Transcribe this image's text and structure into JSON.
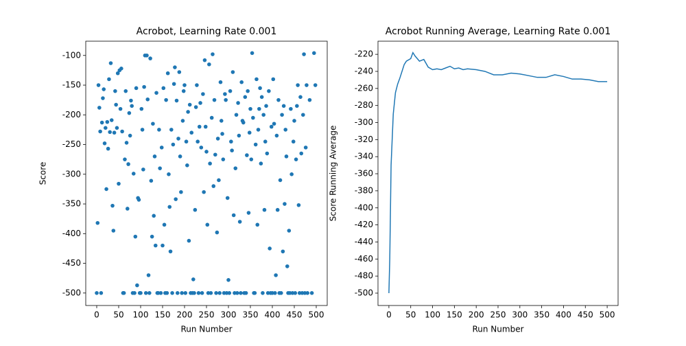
{
  "chart_data": [
    {
      "type": "scatter",
      "title": "Acrobot, Learning Rate 0.001",
      "x_label": "Run Number",
      "y_label": "Score",
      "color": "#1f77b4",
      "x": [
        0,
        2,
        4,
        6,
        8,
        10,
        12,
        14,
        16,
        18,
        20,
        22,
        24,
        26,
        28,
        30,
        32,
        34,
        36,
        38,
        40,
        42,
        44,
        46,
        48,
        50,
        52,
        54,
        56,
        58,
        60,
        62,
        64,
        66,
        68,
        70,
        72,
        74,
        76,
        78,
        80,
        82,
        84,
        86,
        88,
        90,
        92,
        94,
        96,
        98,
        100,
        102,
        104,
        106,
        108,
        110,
        112,
        114,
        116,
        118,
        120,
        122,
        124,
        126,
        128,
        130,
        132,
        134,
        136,
        138,
        140,
        142,
        144,
        146,
        148,
        150,
        152,
        154,
        156,
        158,
        160,
        162,
        164,
        166,
        168,
        170,
        172,
        174,
        176,
        178,
        180,
        182,
        184,
        186,
        188,
        190,
        192,
        194,
        196,
        198,
        200,
        202,
        204,
        206,
        208,
        210,
        212,
        214,
        216,
        218,
        220,
        222,
        224,
        226,
        228,
        230,
        232,
        234,
        236,
        238,
        240,
        242,
        244,
        246,
        248,
        250,
        252,
        254,
        256,
        258,
        260,
        262,
        264,
        266,
        268,
        270,
        272,
        274,
        276,
        278,
        280,
        282,
        284,
        286,
        288,
        290,
        292,
        294,
        296,
        298,
        300,
        302,
        304,
        306,
        308,
        310,
        312,
        314,
        316,
        318,
        320,
        322,
        324,
        326,
        328,
        330,
        332,
        334,
        336,
        338,
        340,
        342,
        344,
        346,
        348,
        350,
        352,
        354,
        356,
        358,
        360,
        362,
        364,
        366,
        368,
        370,
        372,
        374,
        376,
        378,
        380,
        382,
        384,
        386,
        388,
        390,
        392,
        394,
        396,
        398,
        400,
        402,
        404,
        406,
        408,
        410,
        412,
        414,
        416,
        418,
        420,
        422,
        424,
        426,
        428,
        430,
        432,
        434,
        436,
        438,
        440,
        442,
        444,
        446,
        448,
        450,
        452,
        454,
        456,
        458,
        460,
        462,
        464,
        466,
        468,
        470,
        472,
        474,
        476,
        478,
        480,
        485,
        490,
        495,
        498
      ],
      "values": [
        -500,
        -382,
        -150,
        -188,
        -228,
        -500,
        -213,
        -172,
        -157,
        -248,
        -222,
        -325,
        -212,
        -257,
        -140,
        -229,
        -113,
        -209,
        -353,
        -395,
        -230,
        -160,
        -183,
        -222,
        -130,
        -316,
        -125,
        -190,
        -122,
        -228,
        -500,
        -500,
        -275,
        -160,
        -247,
        -358,
        -283,
        -197,
        -235,
        -176,
        -185,
        -500,
        -299,
        -500,
        -405,
        -155,
        -487,
        -340,
        -343,
        -500,
        -500,
        -190,
        -225,
        -292,
        -153,
        -100,
        -500,
        -100,
        -174,
        -470,
        -500,
        -105,
        -311,
        -405,
        -215,
        -370,
        -270,
        -420,
        -163,
        -500,
        -500,
        -225,
        -290,
        -500,
        -255,
        -420,
        -155,
        -385,
        -500,
        -175,
        -500,
        -130,
        -300,
        -355,
        -430,
        -225,
        -500,
        -250,
        -148,
        -120,
        -342,
        -176,
        -500,
        -240,
        -128,
        -270,
        -330,
        -500,
        -210,
        -160,
        -150,
        -500,
        -245,
        -285,
        -195,
        -412,
        -183,
        -500,
        -230,
        -500,
        -477,
        -500,
        -360,
        -187,
        -150,
        -245,
        -500,
        -220,
        -180,
        -255,
        -500,
        -165,
        -330,
        -108,
        -220,
        -262,
        -385,
        -500,
        -115,
        -282,
        -500,
        -205,
        -98,
        -320,
        -175,
        -267,
        -500,
        -398,
        -240,
        -310,
        -500,
        -145,
        -210,
        -232,
        -275,
        -500,
        -165,
        -175,
        -500,
        -340,
        -478,
        -500,
        -160,
        -245,
        -260,
        -128,
        -369,
        -500,
        -290,
        -200,
        -500,
        -180,
        -235,
        -380,
        -500,
        -145,
        -210,
        -213,
        -500,
        -170,
        -500,
        -268,
        -160,
        -365,
        -230,
        -190,
        -275,
        -96,
        -205,
        -500,
        -500,
        -250,
        -140,
        -385,
        -225,
        -190,
        -155,
        -282,
        -170,
        -500,
        -200,
        -360,
        -245,
        -185,
        -265,
        -500,
        -160,
        -425,
        -500,
        -220,
        -500,
        -140,
        -215,
        -500,
        -470,
        -235,
        -360,
        -175,
        -500,
        -310,
        -500,
        -200,
        -430,
        -185,
        -350,
        -225,
        -270,
        -455,
        -500,
        -395,
        -500,
        -190,
        -300,
        -500,
        -245,
        -210,
        -500,
        -275,
        -185,
        -150,
        -352,
        -500,
        -170,
        -265,
        -500,
        -200,
        -98,
        -500,
        -255,
        -150,
        -500,
        -175,
        -500,
        -96,
        -150
      ],
      "xlim": [
        -25,
        525
      ],
      "xticks": [
        0,
        50,
        100,
        150,
        200,
        250,
        300,
        350,
        400,
        450,
        500
      ],
      "ylim": [
        -521,
        -76
      ],
      "yticks": [
        -500,
        -450,
        -400,
        -350,
        -300,
        -250,
        -200,
        -150,
        -100
      ]
    },
    {
      "type": "line",
      "title": "Acrobot Running Average, Learning Rate 0.001",
      "x_label": "Run Number",
      "y_label": "Score Running Average",
      "color": "#1f77b4",
      "x": [
        0,
        2,
        5,
        10,
        15,
        20,
        25,
        30,
        35,
        40,
        50,
        55,
        60,
        70,
        80,
        90,
        100,
        110,
        120,
        130,
        140,
        150,
        160,
        170,
        180,
        200,
        220,
        240,
        260,
        280,
        300,
        320,
        340,
        360,
        380,
        400,
        420,
        440,
        460,
        480,
        500
      ],
      "values": [
        -500,
        -460,
        -350,
        -290,
        -265,
        -255,
        -248,
        -240,
        -232,
        -228,
        -225,
        -218,
        -222,
        -228,
        -226,
        -235,
        -238,
        -237,
        -238,
        -236,
        -234,
        -237,
        -236,
        -238,
        -237,
        -238,
        -240,
        -244,
        -244,
        -242,
        -243,
        -245,
        -247,
        -247,
        -244,
        -246,
        -249,
        -249,
        -250,
        -252,
        -252
      ],
      "xlim": [
        -25,
        525
      ],
      "xticks": [
        0,
        50,
        100,
        150,
        200,
        250,
        300,
        350,
        400,
        450,
        500
      ],
      "ylim": [
        -514.5,
        -204.6
      ],
      "yticks": [
        -500,
        -480,
        -460,
        -440,
        -420,
        -400,
        -380,
        -360,
        -340,
        -320,
        -300,
        -280,
        -260,
        -240,
        -220
      ]
    }
  ]
}
